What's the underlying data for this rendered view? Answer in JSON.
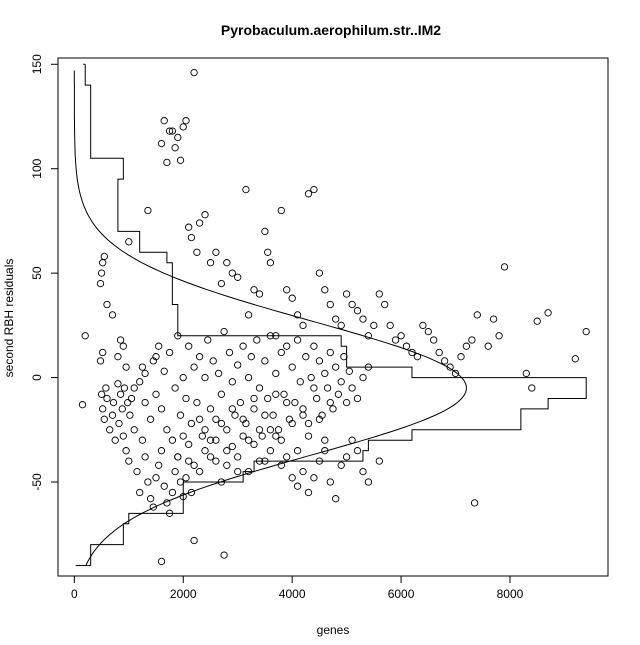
{
  "chart_data": {
    "type": "scatter",
    "title": "Pyrobaculum.aerophilum.str..IM2",
    "xlabel": "genes",
    "ylabel": "second RBH residuals",
    "xlim": [
      -300,
      9800
    ],
    "ylim": [
      -95,
      153
    ],
    "xticks": [
      "0",
      "2000",
      "4000",
      "6000",
      "8000"
    ],
    "yticks": [
      "-50",
      "0",
      "50",
      "100",
      "150"
    ],
    "grid": false,
    "points": [
      [
        150,
        -13
      ],
      [
        200,
        20
      ],
      [
        500,
        -8
      ],
      [
        520,
        -15
      ],
      [
        550,
        -20
      ],
      [
        580,
        -5
      ],
      [
        600,
        -10
      ],
      [
        650,
        -25
      ],
      [
        700,
        -18
      ],
      [
        720,
        -12
      ],
      [
        750,
        -30
      ],
      [
        800,
        -3
      ],
      [
        820,
        -22
      ],
      [
        850,
        -8
      ],
      [
        880,
        -15
      ],
      [
        900,
        -28
      ],
      [
        920,
        -5
      ],
      [
        950,
        -35
      ],
      [
        980,
        -12
      ],
      [
        1000,
        -40
      ],
      [
        1020,
        -18
      ],
      [
        1050,
        -10
      ],
      [
        1100,
        -25
      ],
      [
        1150,
        -45
      ],
      [
        1200,
        -55
      ],
      [
        1250,
        -30
      ],
      [
        1300,
        -38
      ],
      [
        1350,
        -50
      ],
      [
        1400,
        -58
      ],
      [
        1450,
        -62
      ],
      [
        1500,
        -48
      ],
      [
        1550,
        -42
      ],
      [
        1600,
        -35
      ],
      [
        1650,
        -52
      ],
      [
        1700,
        -60
      ],
      [
        1750,
        -65
      ],
      [
        1800,
        -55
      ],
      [
        1850,
        -45
      ],
      [
        1900,
        -38
      ],
      [
        1950,
        -50
      ],
      [
        2000,
        -57
      ],
      [
        2050,
        -48
      ],
      [
        2100,
        -40
      ],
      [
        2150,
        -55
      ],
      [
        2200,
        -78
      ],
      [
        2300,
        -45
      ],
      [
        2400,
        -35
      ],
      [
        2500,
        -30
      ],
      [
        2600,
        -40
      ],
      [
        2700,
        -50
      ],
      [
        2750,
        -85
      ],
      [
        2800,
        -42
      ],
      [
        2900,
        -33
      ],
      [
        3000,
        -38
      ],
      [
        3100,
        -28
      ],
      [
        3200,
        -45
      ],
      [
        3300,
        -32
      ],
      [
        3400,
        -25
      ],
      [
        3500,
        -40
      ],
      [
        3600,
        -35
      ],
      [
        3700,
        -28
      ],
      [
        3800,
        -42
      ],
      [
        3900,
        -38
      ],
      [
        4000,
        -48
      ],
      [
        4100,
        -52
      ],
      [
        4200,
        -45
      ],
      [
        4300,
        -55
      ],
      [
        4400,
        -48
      ],
      [
        4500,
        -40
      ],
      [
        4600,
        -35
      ],
      [
        4700,
        -50
      ],
      [
        4800,
        -58
      ],
      [
        4900,
        -42
      ],
      [
        5000,
        -38
      ],
      [
        5100,
        -30
      ],
      [
        5200,
        -35
      ],
      [
        5300,
        -45
      ],
      [
        5400,
        -50
      ],
      [
        5600,
        -40
      ],
      [
        1600,
        -88
      ],
      [
        7350,
        -60
      ],
      [
        480,
        45
      ],
      [
        500,
        50
      ],
      [
        520,
        55
      ],
      [
        550,
        58
      ],
      [
        480,
        8
      ],
      [
        520,
        12
      ],
      [
        600,
        35
      ],
      [
        700,
        30
      ],
      [
        800,
        10
      ],
      [
        850,
        18
      ],
      [
        900,
        15
      ],
      [
        950,
        5
      ],
      [
        1000,
        65
      ],
      [
        1100,
        -5
      ],
      [
        1300,
        2
      ],
      [
        1350,
        80
      ],
      [
        1500,
        10
      ],
      [
        1600,
        112
      ],
      [
        1650,
        123
      ],
      [
        1700,
        103
      ],
      [
        1750,
        118
      ],
      [
        1800,
        118
      ],
      [
        1850,
        110
      ],
      [
        1900,
        115
      ],
      [
        1950,
        104
      ],
      [
        2000,
        120
      ],
      [
        2050,
        123
      ],
      [
        2100,
        72
      ],
      [
        2150,
        67
      ],
      [
        2200,
        146
      ],
      [
        2250,
        60
      ],
      [
        2300,
        74
      ],
      [
        2400,
        78
      ],
      [
        2500,
        55
      ],
      [
        2600,
        60
      ],
      [
        2700,
        45
      ],
      [
        2800,
        55
      ],
      [
        2900,
        50
      ],
      [
        3000,
        48
      ],
      [
        3150,
        90
      ],
      [
        3200,
        30
      ],
      [
        3300,
        42
      ],
      [
        3400,
        40
      ],
      [
        3500,
        70
      ],
      [
        3550,
        60
      ],
      [
        3600,
        55
      ],
      [
        3700,
        20
      ],
      [
        3800,
        80
      ],
      [
        3900,
        42
      ],
      [
        4000,
        38
      ],
      [
        4100,
        30
      ],
      [
        4200,
        25
      ],
      [
        4300,
        88
      ],
      [
        4400,
        90
      ],
      [
        4500,
        50
      ],
      [
        4600,
        42
      ],
      [
        4700,
        35
      ],
      [
        4800,
        28
      ],
      [
        4900,
        25
      ],
      [
        5000,
        40
      ],
      [
        5100,
        35
      ],
      [
        5200,
        32
      ],
      [
        5300,
        28
      ],
      [
        5400,
        20
      ],
      [
        5500,
        25
      ],
      [
        5600,
        40
      ],
      [
        5700,
        35
      ],
      [
        5800,
        25
      ],
      [
        5900,
        18
      ],
      [
        6000,
        20
      ],
      [
        6100,
        15
      ],
      [
        6200,
        12
      ],
      [
        6300,
        10
      ],
      [
        6400,
        25
      ],
      [
        6500,
        22
      ],
      [
        6600,
        18
      ],
      [
        6700,
        12
      ],
      [
        6800,
        8
      ],
      [
        6900,
        5
      ],
      [
        7000,
        2
      ],
      [
        7100,
        10
      ],
      [
        7200,
        15
      ],
      [
        7300,
        18
      ],
      [
        7400,
        30
      ],
      [
        7600,
        15
      ],
      [
        7700,
        28
      ],
      [
        7800,
        20
      ],
      [
        7900,
        53
      ],
      [
        8300,
        2
      ],
      [
        8400,
        -5
      ],
      [
        8500,
        27
      ],
      [
        8700,
        31
      ],
      [
        9200,
        9
      ],
      [
        9400,
        22
      ],
      [
        1200,
        -2
      ],
      [
        1250,
        5
      ],
      [
        1300,
        -12
      ],
      [
        1400,
        -20
      ],
      [
        1450,
        8
      ],
      [
        1500,
        -8
      ],
      [
        1550,
        15
      ],
      [
        1600,
        -15
      ],
      [
        1650,
        3
      ],
      [
        1700,
        -25
      ],
      [
        1750,
        12
      ],
      [
        1800,
        -30
      ],
      [
        1850,
        -5
      ],
      [
        1900,
        20
      ],
      [
        1950,
        -18
      ],
      [
        2000,
        0
      ],
      [
        2050,
        -10
      ],
      [
        2100,
        15
      ],
      [
        2150,
        -22
      ],
      [
        2200,
        5
      ],
      [
        2250,
        -12
      ],
      [
        2300,
        10
      ],
      [
        2350,
        -28
      ],
      [
        2400,
        0
      ],
      [
        2450,
        18
      ],
      [
        2500,
        -15
      ],
      [
        2550,
        8
      ],
      [
        2600,
        -20
      ],
      [
        2650,
        2
      ],
      [
        2700,
        -8
      ],
      [
        2750,
        22
      ],
      [
        2800,
        -25
      ],
      [
        2850,
        12
      ],
      [
        2900,
        -2
      ],
      [
        2950,
        -18
      ],
      [
        3000,
        6
      ],
      [
        3050,
        -12
      ],
      [
        3100,
        15
      ],
      [
        3150,
        -22
      ],
      [
        3200,
        0
      ],
      [
        3250,
        10
      ],
      [
        3300,
        -15
      ],
      [
        3350,
        18
      ],
      [
        3400,
        -5
      ],
      [
        3450,
        -28
      ],
      [
        3500,
        8
      ],
      [
        3550,
        -10
      ],
      [
        3600,
        20
      ],
      [
        3650,
        -18
      ],
      [
        3700,
        2
      ],
      [
        3750,
        -25
      ],
      [
        3800,
        12
      ],
      [
        3850,
        -8
      ],
      [
        3900,
        15
      ],
      [
        3950,
        -20
      ],
      [
        4000,
        5
      ],
      [
        4050,
        -12
      ],
      [
        4100,
        18
      ],
      [
        4150,
        -2
      ],
      [
        4200,
        -15
      ],
      [
        4250,
        10
      ],
      [
        4300,
        -22
      ],
      [
        4350,
        0
      ],
      [
        4400,
        15
      ],
      [
        4450,
        -10
      ],
      [
        4500,
        8
      ],
      [
        4550,
        -18
      ],
      [
        4600,
        2
      ],
      [
        4650,
        -5
      ],
      [
        4700,
        12
      ],
      [
        4750,
        -15
      ],
      [
        4800,
        5
      ],
      [
        4850,
        -8
      ],
      [
        4900,
        -2
      ],
      [
        4950,
        10
      ],
      [
        5000,
        -12
      ],
      [
        5050,
        3
      ],
      [
        5100,
        -5
      ],
      [
        5200,
        -10
      ],
      [
        5300,
        0
      ],
      [
        5400,
        5
      ],
      [
        1900,
        -38
      ],
      [
        2000,
        -28
      ],
      [
        2100,
        -32
      ],
      [
        2200,
        -42
      ],
      [
        2300,
        -20
      ],
      [
        2400,
        -25
      ],
      [
        2500,
        -38
      ],
      [
        2600,
        -30
      ],
      [
        2700,
        -22
      ],
      [
        2800,
        -35
      ],
      [
        2900,
        -15
      ],
      [
        3000,
        -45
      ],
      [
        3100,
        -20
      ],
      [
        3200,
        -30
      ],
      [
        3300,
        -10
      ],
      [
        3400,
        -40
      ],
      [
        3500,
        -18
      ],
      [
        3600,
        -25
      ],
      [
        3700,
        -8
      ],
      [
        3800,
        -30
      ],
      [
        3900,
        -12
      ],
      [
        4000,
        -22
      ],
      [
        4100,
        -35
      ],
      [
        4200,
        -18
      ],
      [
        4300,
        -28
      ],
      [
        4400,
        -5
      ],
      [
        4500,
        -20
      ],
      [
        4600,
        -30
      ],
      [
        4700,
        -12
      ]
    ],
    "histogram": [
      [
        -90,
        -85,
        300
      ],
      [
        -85,
        -80,
        300
      ],
      [
        -80,
        -75,
        900
      ],
      [
        -75,
        -70,
        900
      ],
      [
        -70,
        -65,
        1000
      ],
      [
        -65,
        -60,
        2000
      ],
      [
        -60,
        -55,
        2000
      ],
      [
        -55,
        -50,
        2000
      ],
      [
        -50,
        -45,
        3100
      ],
      [
        -45,
        -40,
        3300
      ],
      [
        -40,
        -35,
        5300
      ],
      [
        -35,
        -30,
        5400
      ],
      [
        -30,
        -25,
        6200
      ],
      [
        -25,
        -20,
        8200
      ],
      [
        -20,
        -15,
        8200
      ],
      [
        -15,
        -10,
        8700
      ],
      [
        -10,
        -5,
        9400
      ],
      [
        -5,
        0,
        9400
      ],
      [
        0,
        5,
        6200
      ],
      [
        5,
        10,
        5000
      ],
      [
        10,
        15,
        5000
      ],
      [
        15,
        20,
        4900
      ],
      [
        20,
        25,
        1900
      ],
      [
        25,
        30,
        1900
      ],
      [
        30,
        35,
        1900
      ],
      [
        35,
        40,
        1800
      ],
      [
        40,
        45,
        1800
      ],
      [
        45,
        50,
        1800
      ],
      [
        50,
        55,
        1800
      ],
      [
        55,
        60,
        1700
      ],
      [
        60,
        65,
        1200
      ],
      [
        65,
        70,
        1200
      ],
      [
        70,
        75,
        800
      ],
      [
        75,
        80,
        800
      ],
      [
        80,
        85,
        800
      ],
      [
        85,
        90,
        800
      ],
      [
        90,
        95,
        800
      ],
      [
        95,
        100,
        900
      ],
      [
        100,
        105,
        900
      ],
      [
        105,
        110,
        300
      ],
      [
        110,
        115,
        300
      ],
      [
        115,
        120,
        300
      ],
      [
        120,
        125,
        300
      ],
      [
        125,
        130,
        300
      ],
      [
        130,
        135,
        300
      ],
      [
        135,
        140,
        300
      ],
      [
        140,
        145,
        200
      ],
      [
        145,
        150,
        200
      ]
    ],
    "density": {
      "mean": -5,
      "sd": 32,
      "peak": 7200,
      "ymin": -90,
      "ymax": 147
    }
  }
}
